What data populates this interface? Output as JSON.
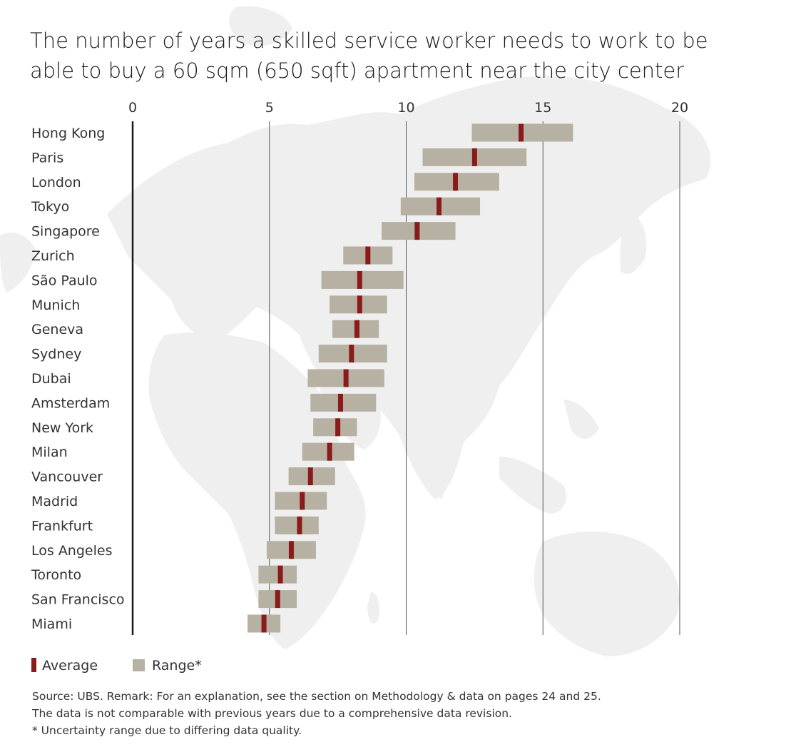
{
  "chart_data": {
    "type": "range-bar",
    "title_lines": [
      "The number of years a skilled service worker needs to work to be",
      "able to buy a 60 sqm (650 sqft) apartment near the city center"
    ],
    "xlim": [
      0,
      20
    ],
    "ticks": [
      0,
      5,
      10,
      15,
      20
    ],
    "tick_labels": [
      "0",
      "5",
      "10",
      "15",
      "20"
    ],
    "categories": [
      "Hong Kong",
      "Paris",
      "London",
      "Tokyo",
      "Singapore",
      "Zurich",
      "São Paulo",
      "Munich",
      "Geneva",
      "Sydney",
      "Dubai",
      "Amsterdam",
      "New York",
      "Milan",
      "Vancouver",
      "Madrid",
      "Frankfurt",
      "Los Angeles",
      "Toronto",
      "San Francisco",
      "Miami"
    ],
    "series": [
      {
        "name": "Average",
        "values": [
          14.2,
          12.5,
          11.8,
          11.2,
          10.4,
          8.6,
          8.3,
          8.3,
          8.2,
          8.0,
          7.8,
          7.6,
          7.5,
          7.2,
          6.5,
          6.2,
          6.1,
          5.8,
          5.4,
          5.3,
          4.8
        ]
      },
      {
        "name": "Range*",
        "low": [
          12.4,
          10.6,
          10.3,
          9.8,
          9.1,
          7.7,
          6.9,
          7.2,
          7.3,
          6.8,
          6.4,
          6.5,
          6.6,
          6.2,
          5.7,
          5.2,
          5.2,
          4.9,
          4.6,
          4.6,
          4.2
        ],
        "high": [
          16.1,
          14.4,
          13.4,
          12.7,
          11.8,
          9.5,
          9.9,
          9.3,
          9.0,
          9.3,
          9.2,
          8.9,
          8.2,
          8.1,
          7.4,
          7.1,
          6.8,
          6.7,
          6.0,
          6.0,
          5.4
        ]
      }
    ],
    "legend": {
      "position": "bottom-left",
      "average_label": "Average",
      "range_label": "Range*"
    },
    "colors": {
      "average": "#8b1a1a",
      "range": "#b7b1a4",
      "gridline": "#555555",
      "axis": "#1a1a1a",
      "map": "#eeeeee"
    }
  },
  "footnotes": [
    "Source: UBS. Remark: For an explanation, see the section on Methodology & data on pages 24 and 25.",
    "The data is not comparable with previous years due to a comprehensive data revision.",
    "* Uncertainty range due to differing data quality."
  ]
}
